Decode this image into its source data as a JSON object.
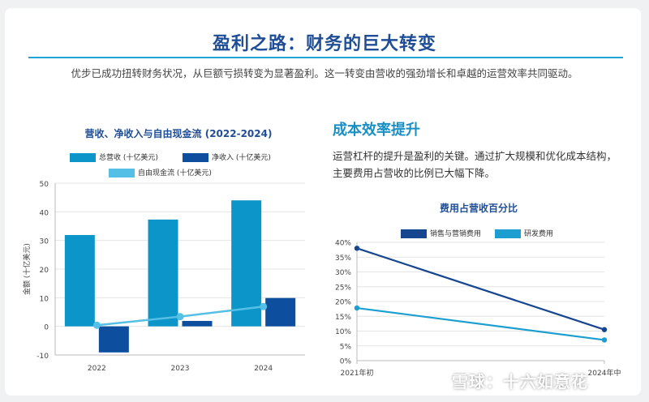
{
  "page": {
    "title": "盈利之路：财务的巨大转变",
    "subtitle": "优步已成功扭转财务状况，从巨额亏损转变为显著盈利。这一转变由营收的强劲增长和卓越的运营效率共同驱动。",
    "section_title": "成本效率提升",
    "section_text": "运营杠杆的提升是盈利的关键。通过扩大规模和优化成本结构，主要费用占营收的比例已大幅下降。",
    "watermark": "雪球：十六如意花"
  },
  "colors": {
    "revenue": "#0b95c8",
    "net_income": "#0d4f9e",
    "fcf": "#55bfe6",
    "sales_marketing": "#15468f",
    "rnd": "#1c9fd0"
  },
  "chart_data": [
    {
      "type": "bar",
      "title": "营收、净收入与自由现金流 (2022-2024)",
      "categories": [
        "2022",
        "2023",
        "2024"
      ],
      "series": [
        {
          "name": "总营收 (十亿美元)",
          "type": "bar",
          "values": [
            31.9,
            37.3,
            44.0
          ]
        },
        {
          "name": "净收入 (十亿美元)",
          "type": "bar",
          "values": [
            -9.1,
            1.9,
            9.9
          ]
        },
        {
          "name": "自由现金流 (十亿美元)",
          "type": "line",
          "values": [
            0.4,
            3.4,
            6.9
          ]
        }
      ],
      "ylabel": "金额 (十亿美元)",
      "xlabel": "",
      "ylim": [
        -10,
        50
      ],
      "yticks": [
        -10,
        0,
        10,
        20,
        30,
        40,
        50
      ],
      "grid": true,
      "legend": "top"
    },
    {
      "type": "line",
      "title": "费用占营收百分比",
      "x": [
        "2021年初",
        "2024年中"
      ],
      "series": [
        {
          "name": "销售与营销费用",
          "values": [
            38,
            10.5
          ]
        },
        {
          "name": "研发费用",
          "values": [
            17.8,
            7
          ]
        }
      ],
      "ylim": [
        0,
        40
      ],
      "yticks": [
        "0%",
        "5%",
        "10%",
        "15%",
        "20%",
        "25%",
        "30%",
        "35%",
        "40%"
      ],
      "grid": true,
      "legend": "top"
    }
  ]
}
